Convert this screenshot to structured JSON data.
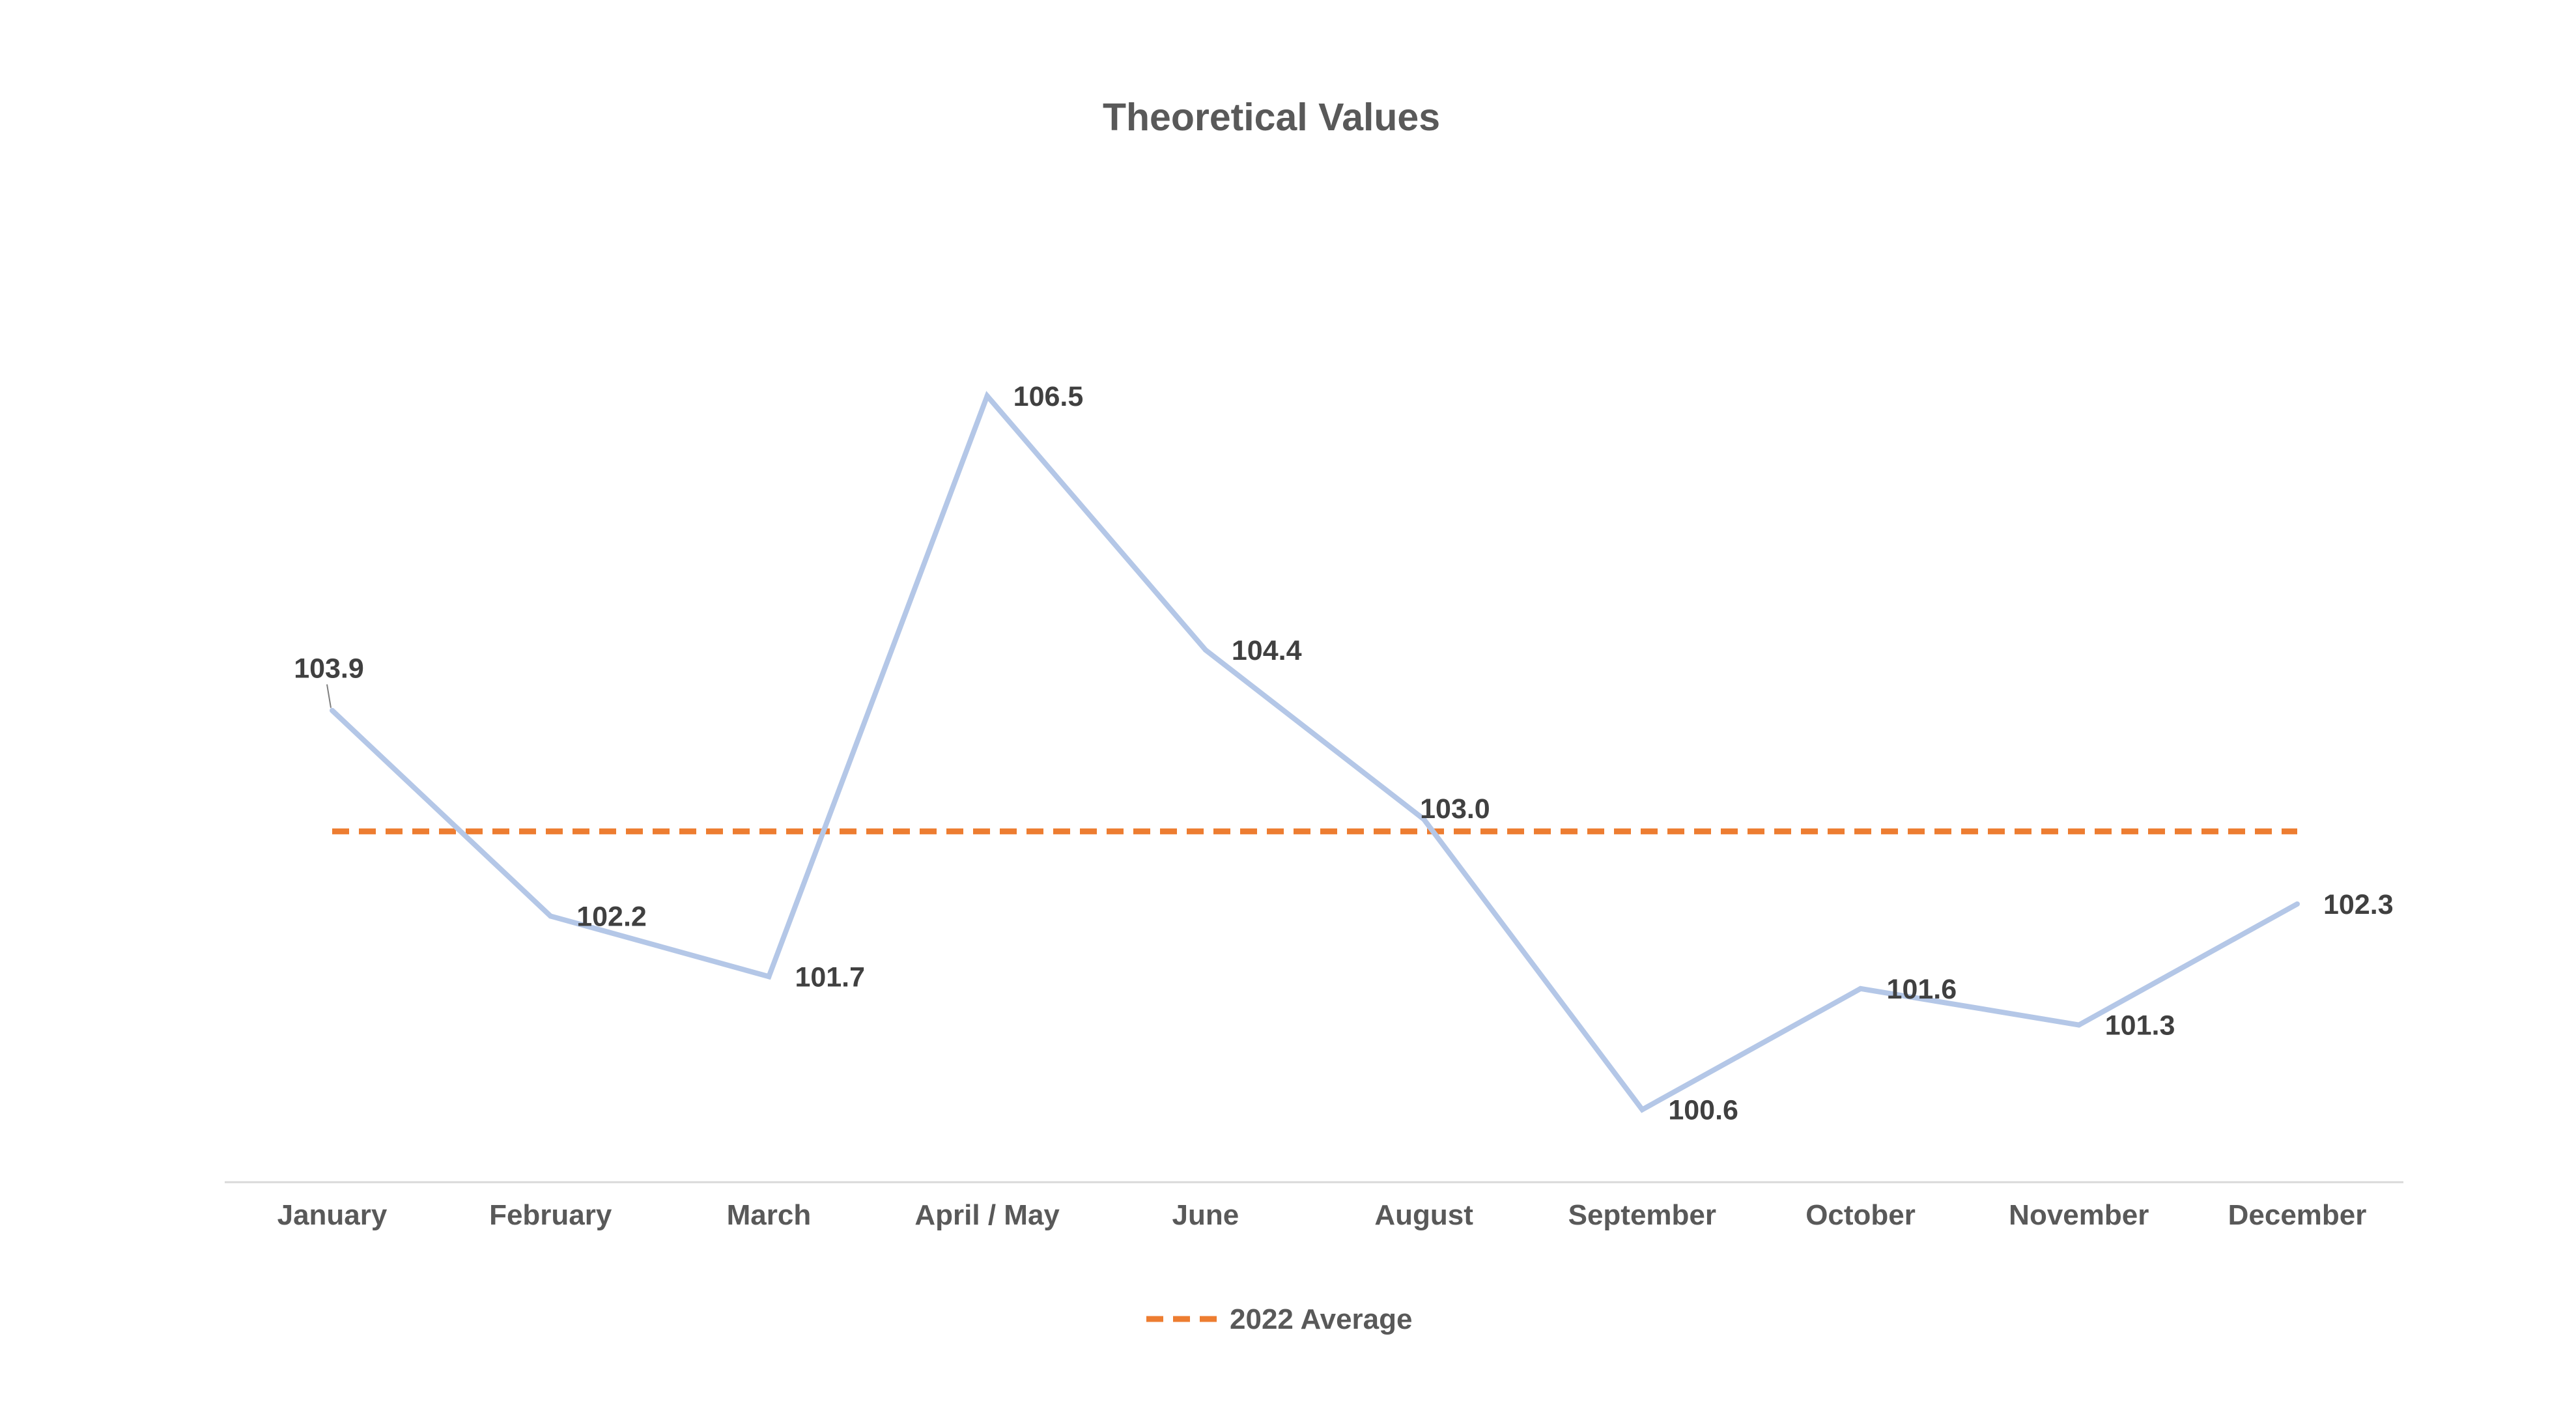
{
  "chart_data": {
    "type": "line",
    "title": "Theoretical Values",
    "xlabel": "",
    "ylabel": "",
    "categories": [
      "January",
      "February",
      "March",
      "April / May",
      "June",
      "August",
      "September",
      "October",
      "November",
      "December"
    ],
    "series": [
      {
        "values": [
          103.9,
          102.2,
          101.7,
          106.5,
          104.4,
          103.0,
          100.6,
          101.6,
          101.3,
          102.3
        ],
        "data_labels": [
          "103.9",
          "102.2",
          "101.7",
          "106.5",
          "104.4",
          "103.0",
          "100.6",
          "101.6",
          "101.3",
          "102.3"
        ],
        "color": "#B4C7E7"
      }
    ],
    "reference_line": {
      "name": "2022 Average",
      "value": 102.9,
      "color": "#ED7D31",
      "style": "dashed"
    },
    "ylim": [
      100.0,
      107.0
    ],
    "grid": false,
    "legend": {
      "position": "bottom",
      "entries": [
        "2022 Average"
      ]
    },
    "axis_color": "#D9D9D9"
  }
}
